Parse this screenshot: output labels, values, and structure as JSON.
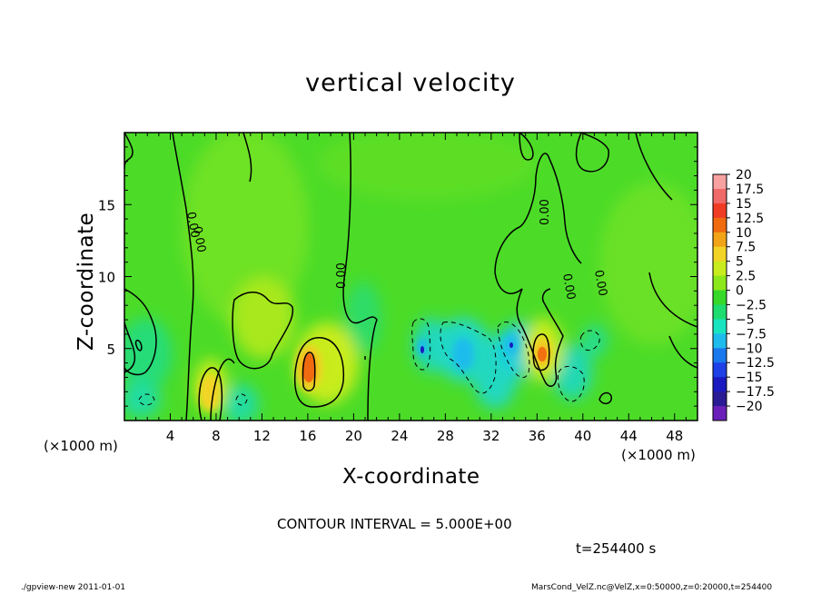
{
  "chart_data": {
    "type": "heatmap",
    "title": "vertical velocity",
    "xlabel": "X-coordinate",
    "ylabel": "Z-coordinate",
    "x_unit": "(×1000 m)",
    "xlim": [
      0,
      50
    ],
    "ylim": [
      0,
      20
    ],
    "x_ticks": [
      4,
      8,
      12,
      16,
      20,
      24,
      28,
      32,
      36,
      40,
      44,
      48
    ],
    "y_ticks": [
      5,
      10,
      15
    ],
    "colorbar": {
      "levels": [
        20,
        17.5,
        15,
        12.5,
        10,
        7.5,
        5,
        2.5,
        0,
        -2.5,
        -5,
        -7.5,
        -10,
        -12.5,
        -15,
        -17.5,
        -20
      ],
      "labels": [
        "20",
        "17.5",
        "15",
        "12.5",
        "10",
        "7.5",
        "5",
        "2.5",
        "0",
        "−2.5",
        "−5",
        "−7.5",
        "−10",
        "−12.5",
        "−15",
        "−17.5",
        "−20"
      ],
      "colors": [
        "#f7a1a1",
        "#f16a6a",
        "#f03c24",
        "#f06a10",
        "#f2a418",
        "#f2d426",
        "#c8ec1e",
        "#8ce81a",
        "#36d82a",
        "#1edc70",
        "#18e4c0",
        "#1ebcec",
        "#1a78ee",
        "#1e40e6",
        "#1a1ac0",
        "#2a1a94",
        "#6a20b8"
      ]
    },
    "contour_labels": [
      "0.00",
      "0.00",
      "0.00",
      "0.00",
      "0.00",
      "0.00"
    ],
    "features": [
      {
        "x": 16.2,
        "z": 3.5,
        "value": 12.5
      },
      {
        "x": 36.5,
        "z": 4.5,
        "value": 10
      },
      {
        "x": 7.8,
        "z": 1.5,
        "value": 7.5
      },
      {
        "x": 26,
        "z": 5,
        "value": -10
      },
      {
        "x": 33.8,
        "z": 5.2,
        "value": -10
      },
      {
        "x": 29.5,
        "z": 4.2,
        "value": -7.5
      }
    ]
  },
  "text": {
    "x_unit_left": "(×1000 m)",
    "x_unit_right": "(×1000 m)",
    "contour_interval": "CONTOUR INTERVAL = 5.000E+00",
    "time": "t=254400 s",
    "footer_left": "./gpview-new   2011-01-01",
    "footer_right": "MarsCond_VelZ.nc@VelZ,x=0:50000,z=0:20000,t=254400"
  }
}
